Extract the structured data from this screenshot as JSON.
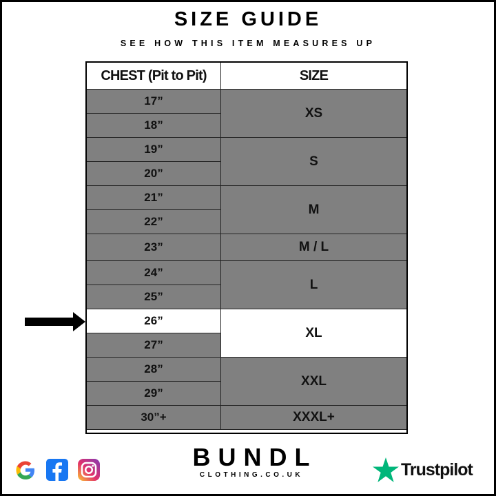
{
  "title": "SIZE GUIDE",
  "subtitle": "SEE HOW THIS ITEM MEASURES UP",
  "table": {
    "headers": [
      "CHEST (Pit to Pit)",
      "SIZE"
    ],
    "highlighted_chest": "26”",
    "highlighted_size": "XL",
    "sizes": [
      {
        "label": "XS",
        "chest": [
          "17”",
          "18”"
        ]
      },
      {
        "label": "S",
        "chest": [
          "19”",
          "20”"
        ]
      },
      {
        "label": "M",
        "chest": [
          "21”",
          "22”"
        ]
      },
      {
        "label": "M / L",
        "chest": [
          "23”"
        ]
      },
      {
        "label": "L",
        "chest": [
          "24”",
          "25”"
        ]
      },
      {
        "label": "XL",
        "chest": [
          "26”",
          "27”"
        ]
      },
      {
        "label": "XXL",
        "chest": [
          "28”",
          "29”"
        ]
      },
      {
        "label": "XXXL+",
        "chest": [
          "30”+"
        ]
      }
    ]
  },
  "footer": {
    "brand": "BUNDL",
    "brand_sub": "CLOTHING.CO.UK",
    "trustpilot": "Trustpilot",
    "icons": [
      "google-icon",
      "facebook-icon",
      "instagram-icon",
      "trustpilot-star-icon"
    ],
    "colors": {
      "trustpilot": "#00b67a",
      "facebook": "#1877f2",
      "highlight": "#ffffff",
      "row": "#808080"
    }
  }
}
